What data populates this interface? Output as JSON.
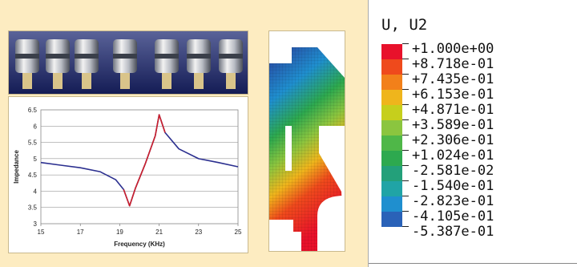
{
  "legend": {
    "title": "U, U2",
    "entries": [
      {
        "label": "+1.000e+00",
        "color": "#e8112b"
      },
      {
        "label": "+8.718e-01",
        "color": "#ef4a1c"
      },
      {
        "label": "+7.435e-01",
        "color": "#f2801a"
      },
      {
        "label": "+6.153e-01",
        "color": "#efb51c"
      },
      {
        "label": "+4.871e-01",
        "color": "#c6cf1c"
      },
      {
        "label": "+3.589e-01",
        "color": "#8bc53f"
      },
      {
        "label": "+2.306e-01",
        "color": "#4fb748"
      },
      {
        "label": "+1.024e-01",
        "color": "#2da94f"
      },
      {
        "label": "-2.581e-02",
        "color": "#23a07a"
      },
      {
        "label": "-1.540e-01",
        "color": "#20a4a6"
      },
      {
        "label": "-2.823e-01",
        "color": "#1f8fcf"
      },
      {
        "label": "-4.105e-01",
        "color": "#2a62b8"
      },
      {
        "label": "-5.387e-01",
        "color": "#2b3c9a"
      }
    ]
  },
  "chart_data": {
    "type": "line",
    "title": "",
    "xlabel": "Frequency (KHz)",
    "ylabel": "Impedance",
    "xlim": [
      15,
      25
    ],
    "ylim": [
      3,
      6.5
    ],
    "xticks": [
      "15",
      "17",
      "19",
      "21",
      "23",
      "25"
    ],
    "yticks": [
      "3",
      "3.5",
      "4",
      "4.5",
      "5",
      "5.5",
      "6",
      "6.5"
    ],
    "grid": true,
    "series": [
      {
        "color": "#2b2f8f",
        "x": [
          15,
          16,
          17,
          18,
          18.8,
          19.2,
          19.5,
          19.8,
          20.3,
          20.8,
          21.0,
          21.3,
          22,
          23,
          24,
          25
        ],
        "y": [
          4.88,
          4.8,
          4.72,
          4.6,
          4.35,
          4.05,
          3.55,
          4.1,
          4.85,
          5.7,
          6.35,
          5.8,
          5.3,
          5.0,
          4.88,
          4.75
        ]
      },
      {
        "color": "#cc1f2b",
        "x": [
          19.2,
          19.5,
          19.8,
          20.3,
          20.8,
          21.0,
          21.3
        ],
        "y": [
          4.05,
          3.55,
          4.1,
          4.85,
          5.7,
          6.35,
          5.8
        ]
      }
    ]
  }
}
